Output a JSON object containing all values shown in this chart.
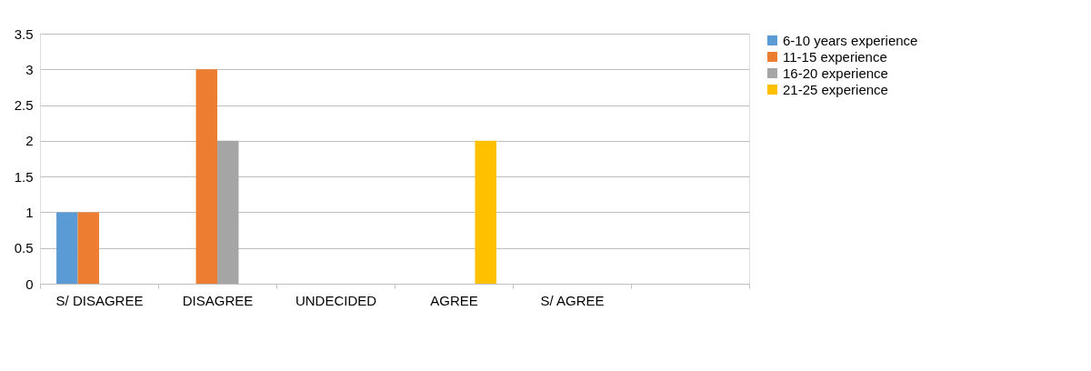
{
  "chart_data": {
    "type": "bar",
    "categories": [
      "S/ DISAGREE",
      "DISAGREE",
      "UNDECIDED",
      "AGREE",
      "S/ AGREE",
      null
    ],
    "series": [
      {
        "name": "6-10 years experience",
        "color": "#5b9bd5",
        "values": [
          1,
          null,
          null,
          null,
          null,
          null
        ]
      },
      {
        "name": "11-15 experience",
        "color": "#ed7d31",
        "values": [
          1,
          3,
          null,
          null,
          null,
          null
        ]
      },
      {
        "name": "16-20 experience",
        "color": "#a5a5a5",
        "values": [
          null,
          2,
          null,
          null,
          null,
          null
        ]
      },
      {
        "name": "21-25 experience",
        "color": "#ffc000",
        "values": [
          null,
          null,
          null,
          2,
          null,
          null
        ]
      }
    ],
    "ylim": [
      0,
      3.5
    ],
    "yticks": [
      0,
      0.5,
      1,
      1.5,
      2,
      2.5,
      3,
      3.5
    ],
    "grid": "y",
    "legend": "right"
  }
}
